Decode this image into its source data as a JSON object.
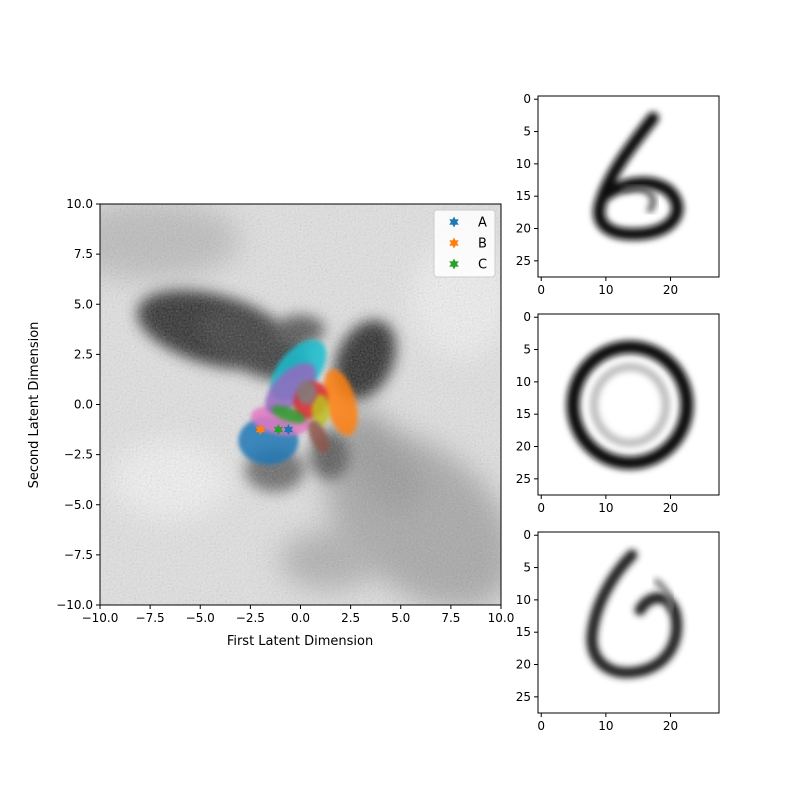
{
  "chart_data": [
    {
      "type": "scatter",
      "xlabel": "First Latent Dimension",
      "ylabel": "Second Latent Dimension",
      "xlim": [
        -10,
        10
      ],
      "ylim": [
        -10,
        10
      ],
      "xticks": [
        -10.0,
        -7.5,
        -5.0,
        -2.5,
        0.0,
        2.5,
        5.0,
        7.5,
        10.0
      ],
      "yticks": [
        -10.0,
        -7.5,
        -5.0,
        -2.5,
        0.0,
        2.5,
        5.0,
        7.5,
        10.0
      ],
      "xtick_labels": [
        "−10.0",
        "−7.5",
        "−5.0",
        "−2.5",
        "0.0",
        "2.5",
        "5.0",
        "7.5",
        "10.0"
      ],
      "ytick_labels": [
        "−10.0",
        "−7.5",
        "−5.0",
        "−2.5",
        "0.0",
        "2.5",
        "5.0",
        "7.5",
        "10.0"
      ],
      "background": "grayscale density heatmap of decoded latent space",
      "grid": false,
      "legend_position": "upper right",
      "series": [
        {
          "name": "A",
          "color": "#1f77b4",
          "marker": "star",
          "points": [
            [
              -0.6,
              -1.25
            ]
          ]
        },
        {
          "name": "B",
          "color": "#ff7f0e",
          "marker": "star",
          "points": [
            [
              -2.0,
              -1.25
            ]
          ]
        },
        {
          "name": "C",
          "color": "#2ca02c",
          "marker": "star",
          "points": [
            [
              -1.1,
              -1.25
            ]
          ]
        }
      ],
      "clusters": [
        {
          "color": "#1f77b4",
          "center": [
            -1.6,
            -1.8
          ]
        },
        {
          "color": "#e377c2",
          "center": [
            -1.0,
            -0.8
          ]
        },
        {
          "color": "#17becf",
          "center": [
            -0.1,
            1.7
          ]
        },
        {
          "color": "#9467bd",
          "center": [
            -0.5,
            0.8
          ]
        },
        {
          "color": "#ff7f0e",
          "center": [
            2.0,
            0.1
          ]
        },
        {
          "color": "#d62728",
          "center": [
            0.5,
            0.2
          ]
        },
        {
          "color": "#2ca02c",
          "center": [
            -0.6,
            -0.5
          ]
        },
        {
          "color": "#bcbd22",
          "center": [
            1.0,
            -0.3
          ]
        },
        {
          "color": "#8c564b",
          "center": [
            0.9,
            -1.6
          ]
        },
        {
          "color": "#7f7f7f",
          "center": [
            0.3,
            0.6
          ]
        }
      ]
    },
    {
      "type": "heatmap",
      "description": "Decoded digit image for point A",
      "xticks": [
        0,
        10,
        20
      ],
      "yticks": [
        0,
        5,
        10,
        15,
        20,
        25
      ],
      "xlim": [
        -0.5,
        27.5
      ],
      "ylim": [
        27.5,
        -0.5
      ],
      "digit": "6"
    },
    {
      "type": "heatmap",
      "description": "Decoded digit image for point B",
      "xticks": [
        0,
        10,
        20
      ],
      "yticks": [
        0,
        5,
        10,
        15,
        20,
        25
      ],
      "xlim": [
        -0.5,
        27.5
      ],
      "ylim": [
        27.5,
        -0.5
      ],
      "digit": "0"
    },
    {
      "type": "heatmap",
      "description": "Decoded digit image for point C",
      "xticks": [
        0,
        10,
        20
      ],
      "yticks": [
        0,
        5,
        10,
        15,
        20,
        25
      ],
      "xlim": [
        -0.5,
        27.5
      ],
      "ylim": [
        27.5,
        -0.5
      ],
      "digit": "6"
    }
  ]
}
